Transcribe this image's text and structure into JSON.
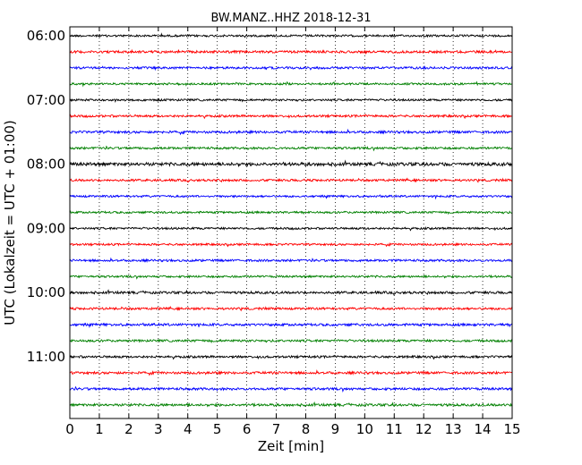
{
  "chart_data": {
    "type": "line",
    "title": "BW.MANZ..HHZ 2018-12-31",
    "xlabel": "Zeit  [min]",
    "ylabel": "UTC (Lokalzeit = UTC + 01:00)",
    "xlim": [
      0,
      15
    ],
    "x_ticks": [
      "0",
      "1",
      "2",
      "3",
      "4",
      "5",
      "6",
      "7",
      "8",
      "9",
      "10",
      "11",
      "12",
      "13",
      "14",
      "15"
    ],
    "y_ticks": [
      "06:00",
      "07:00",
      "08:00",
      "09:00",
      "10:00",
      "11:00"
    ],
    "x_grid": "dotted",
    "trace_colors": [
      "#000000",
      "#ff0000",
      "#0000ff",
      "#008000"
    ],
    "series": [
      {
        "start": "06:00",
        "amp": 1.0
      },
      {
        "start": "06:15",
        "amp": 1.2
      },
      {
        "start": "06:30",
        "amp": 1.1
      },
      {
        "start": "06:45",
        "amp": 1.0
      },
      {
        "start": "07:00",
        "amp": 1.0
      },
      {
        "start": "07:15",
        "amp": 1.1
      },
      {
        "start": "07:30",
        "amp": 1.2
      },
      {
        "start": "07:45",
        "amp": 1.1
      },
      {
        "start": "08:00",
        "amp": 1.6
      },
      {
        "start": "08:15",
        "amp": 1.1
      },
      {
        "start": "08:30",
        "amp": 1.0
      },
      {
        "start": "08:45",
        "amp": 1.0
      },
      {
        "start": "09:00",
        "amp": 1.0
      },
      {
        "start": "09:15",
        "amp": 1.0
      },
      {
        "start": "09:30",
        "amp": 1.1
      },
      {
        "start": "09:45",
        "amp": 1.0
      },
      {
        "start": "10:00",
        "amp": 1.2
      },
      {
        "start": "10:15",
        "amp": 1.1
      },
      {
        "start": "10:30",
        "amp": 1.2
      },
      {
        "start": "10:45",
        "amp": 1.1
      },
      {
        "start": "11:00",
        "amp": 1.1
      },
      {
        "start": "11:15",
        "amp": 1.2
      },
      {
        "start": "11:30",
        "amp": 1.2
      },
      {
        "start": "11:45",
        "amp": 1.2
      }
    ]
  }
}
